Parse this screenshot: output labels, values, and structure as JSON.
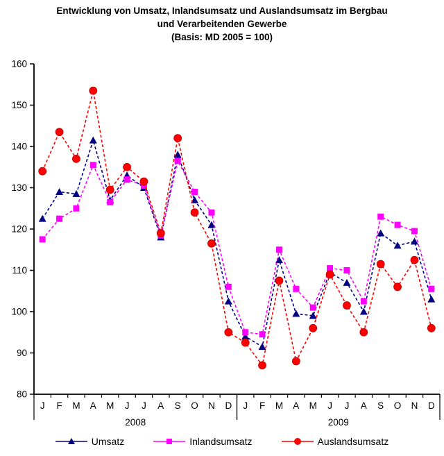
{
  "title": {
    "line1": "Entwicklung von Umsatz, Inlandsumsatz und Auslandsumsatz im Bergbau",
    "line2": "und Verarbeitenden Gewerbe",
    "line3": "(Basis: MD 2005 = 100)"
  },
  "chart_data": {
    "type": "line",
    "x_categories_months": [
      "J",
      "F",
      "M",
      "A",
      "M",
      "J",
      "J",
      "A",
      "S",
      "O",
      "N",
      "D",
      "J",
      "F",
      "M",
      "A",
      "M",
      "J",
      "J",
      "A",
      "S",
      "O",
      "N",
      "D"
    ],
    "year_groups": [
      {
        "label": "2008",
        "start": 0,
        "end": 11
      },
      {
        "label": "2009",
        "start": 12,
        "end": 23
      }
    ],
    "ylim": [
      80,
      160
    ],
    "ytick_step": 10,
    "grid": "off",
    "legend_position": "bottom",
    "axis_color": "#000000",
    "series": [
      {
        "name": "Umsatz",
        "color": "#000080",
        "marker": "triangle",
        "values": [
          122.5,
          129,
          128.5,
          141.5,
          127,
          133,
          130,
          118,
          138,
          127,
          121,
          102.5,
          94,
          91.5,
          112.5,
          99.5,
          99,
          109.5,
          107,
          100,
          119,
          116,
          117,
          103
        ]
      },
      {
        "name": "Inlandsumsatz",
        "color": "#FF00FF",
        "marker": "square",
        "values": [
          117.5,
          122.5,
          125,
          135.5,
          126.5,
          132,
          130.5,
          118.5,
          136.5,
          129,
          124,
          106,
          95,
          94.5,
          115,
          105.5,
          101,
          110.5,
          110,
          102.5,
          123,
          121,
          119.5,
          105.5
        ]
      },
      {
        "name": "Auslandsumsatz",
        "color": "#FF0000",
        "marker": "circle",
        "values": [
          134,
          143.5,
          137,
          153.5,
          129.5,
          135,
          131.5,
          119,
          142,
          124,
          116.5,
          95,
          92.5,
          87,
          107.5,
          88,
          96,
          109,
          101.5,
          95,
          111.5,
          106,
          112.5,
          96
        ]
      }
    ]
  }
}
